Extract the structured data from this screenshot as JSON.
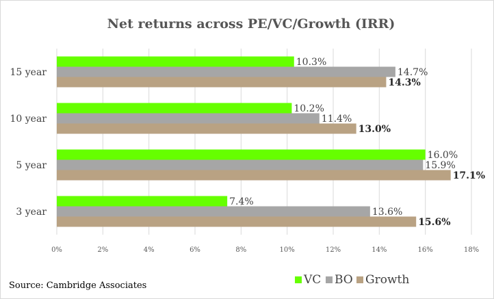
{
  "chart_data": {
    "type": "bar",
    "orientation": "horizontal",
    "title": "Net returns across PE/VC/Growth (IRR)",
    "categories": [
      "15 year",
      "10 year",
      "5 year",
      "3 year"
    ],
    "series": [
      {
        "name": "VC",
        "color": "#66ff00",
        "values": [
          10.3,
          10.2,
          16.0,
          7.4
        ],
        "labels": [
          "10.3%",
          "10.2%",
          "16.0%",
          "7.4%"
        ],
        "bold_labels": false
      },
      {
        "name": "BO",
        "color": "#a6a6a6",
        "values": [
          14.7,
          11.4,
          15.9,
          13.6
        ],
        "labels": [
          "14.7%",
          "11.4%",
          "15.9%",
          "13.6%"
        ],
        "bold_labels": false
      },
      {
        "name": "Growth",
        "color": "#b9a283",
        "values": [
          14.3,
          13.0,
          17.1,
          15.6
        ],
        "labels": [
          "14.3%",
          "13.0%",
          "17.1%",
          "15.6%"
        ],
        "bold_labels": true
      }
    ],
    "xlim": [
      0,
      18
    ],
    "xticks": [
      0,
      2,
      4,
      6,
      8,
      10,
      12,
      14,
      16,
      18
    ],
    "xtick_labels": [
      "0%",
      "2%",
      "4%",
      "6%",
      "8%",
      "10%",
      "12%",
      "14%",
      "16%",
      "18%"
    ],
    "grid": "vertical",
    "legend_position": "bottom-right",
    "source": "Source: Cambridge Associates"
  }
}
